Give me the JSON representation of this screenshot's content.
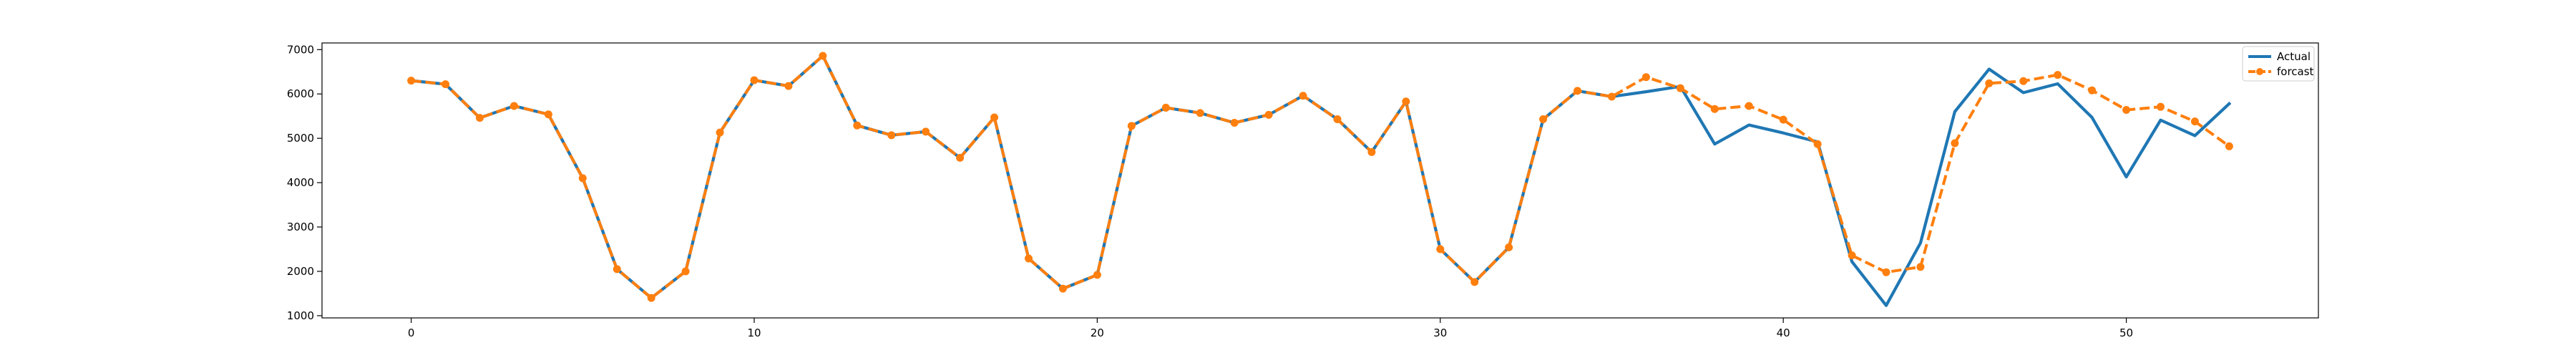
{
  "chart_data": {
    "type": "line",
    "title": "",
    "xlabel": "",
    "ylabel": "",
    "xlim": [
      -2.6,
      55.6
    ],
    "ylim": [
      950,
      7150
    ],
    "xticks": [
      0,
      10,
      20,
      30,
      40,
      50
    ],
    "yticks": [
      1000,
      2000,
      3000,
      4000,
      5000,
      6000,
      7000
    ],
    "grid": false,
    "legend_position": "top-right",
    "series": [
      {
        "name": "Actual",
        "color": "#1f77b4",
        "style": "solid",
        "x": [
          0,
          1,
          2,
          3,
          4,
          5,
          6,
          7,
          8,
          9,
          10,
          11,
          12,
          13,
          14,
          15,
          16,
          17,
          18,
          19,
          20,
          21,
          22,
          23,
          24,
          25,
          26,
          27,
          28,
          29,
          30,
          31,
          32,
          33,
          34,
          35,
          36,
          37,
          38,
          39,
          40,
          41,
          42,
          43,
          44,
          45,
          46,
          47,
          48,
          49,
          50,
          51,
          52,
          53
        ],
        "values": [
          6300,
          6220,
          5460,
          5730,
          5540,
          4100,
          2050,
          1400,
          2000,
          5130,
          6310,
          6180,
          6860,
          5290,
          5070,
          5150,
          4560,
          5470,
          2290,
          1610,
          1920,
          5280,
          5690,
          5570,
          5350,
          5530,
          5960,
          5430,
          4690,
          5830,
          2500,
          1760,
          2540,
          5430,
          6070,
          5940,
          6050,
          6170,
          4870,
          5300,
          5120,
          4920,
          2220,
          1230,
          2640,
          5600,
          6560,
          6030,
          6230,
          5470,
          4130,
          5410,
          5060,
          5780
        ]
      },
      {
        "name": "forcast",
        "color": "#ff7f0e",
        "style": "dashed",
        "marker": "circle",
        "x": [
          0,
          1,
          2,
          3,
          4,
          5,
          6,
          7,
          8,
          9,
          10,
          11,
          12,
          13,
          14,
          15,
          16,
          17,
          18,
          19,
          20,
          21,
          22,
          23,
          24,
          25,
          26,
          27,
          28,
          29,
          30,
          31,
          32,
          33,
          34,
          35,
          36,
          37,
          38,
          39,
          40,
          41,
          42,
          43,
          44,
          45,
          46,
          47,
          48,
          49,
          50,
          51,
          52,
          53
        ],
        "values": [
          6300,
          6220,
          5460,
          5730,
          5540,
          4100,
          2050,
          1400,
          2000,
          5130,
          6310,
          6180,
          6860,
          5290,
          5070,
          5150,
          4560,
          5470,
          2290,
          1610,
          1920,
          5280,
          5690,
          5570,
          5350,
          5530,
          5960,
          5430,
          4690,
          5830,
          2500,
          1760,
          2540,
          5430,
          6070,
          5940,
          6380,
          6130,
          5660,
          5730,
          5420,
          4870,
          2360,
          1980,
          2100,
          4890,
          6240,
          6290,
          6430,
          6080,
          5640,
          5710,
          5380,
          4820
        ]
      }
    ]
  }
}
